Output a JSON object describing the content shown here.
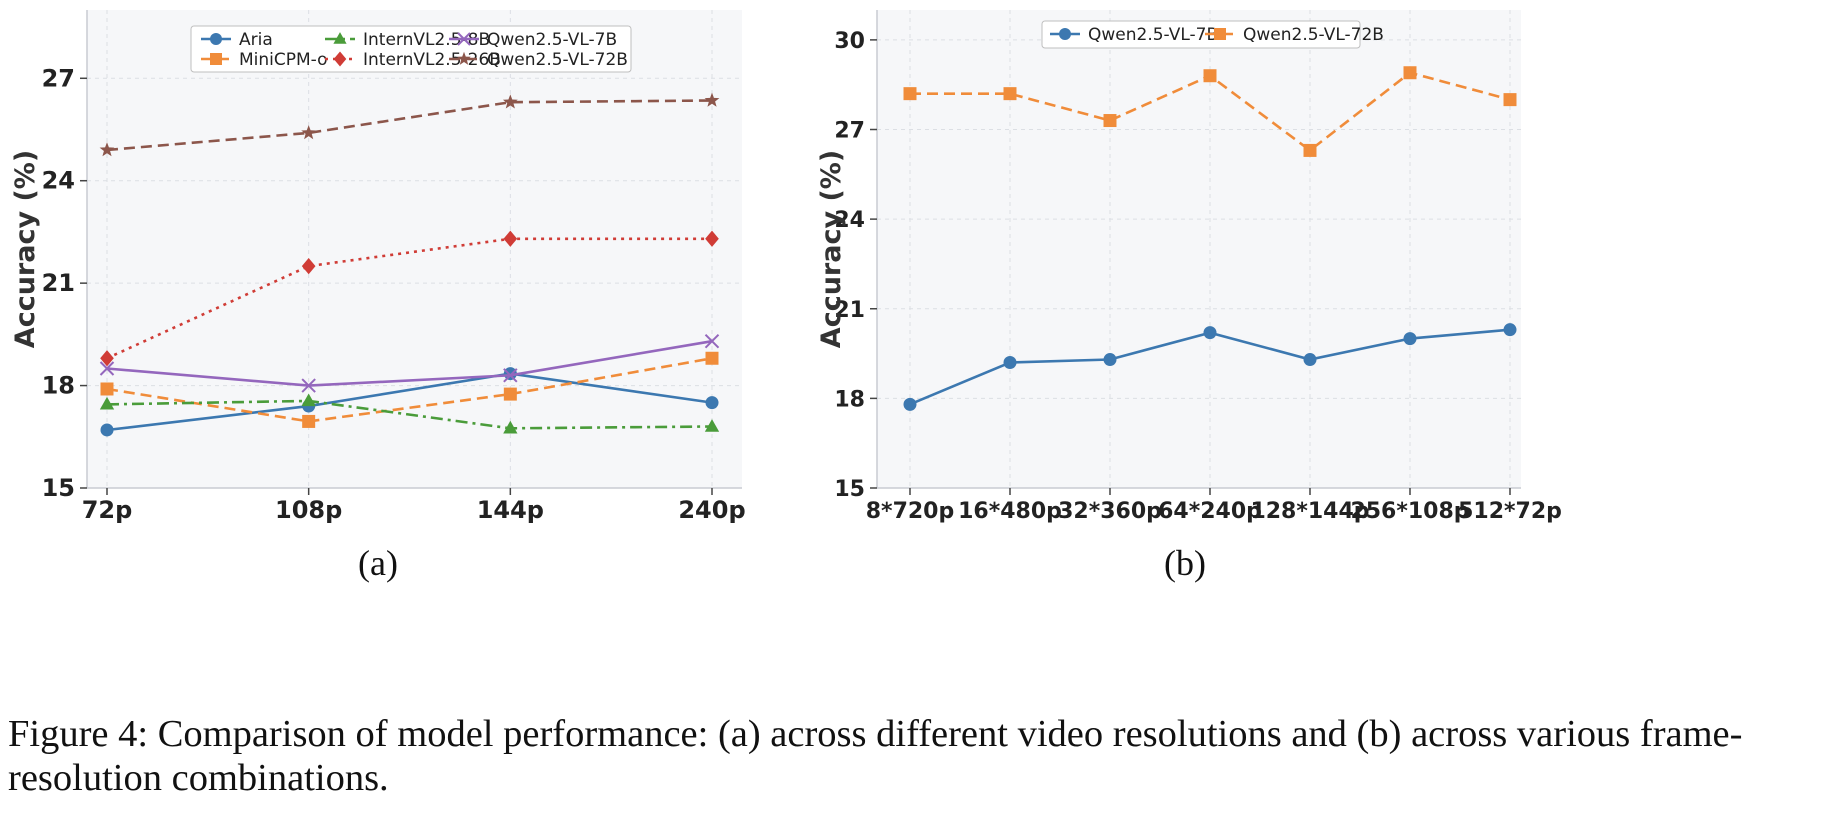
{
  "chart_data": [
    {
      "type": "line",
      "sublabel": "(a)",
      "ylabel": "Accuracy (%)",
      "xlabel": "",
      "categories": [
        "72p",
        "108p",
        "144p",
        "240p"
      ],
      "ylim": [
        15,
        29
      ],
      "yticks": [
        "15",
        "18",
        "21",
        "24",
        "27"
      ],
      "grid": true,
      "legend_position": "top-center",
      "series": [
        {
          "name": "Aria",
          "color": "#3c78b0",
          "marker": "circle",
          "dash": "solid",
          "values": [
            16.7,
            17.4,
            18.35,
            17.5
          ]
        },
        {
          "name": "MiniCPM-o",
          "color": "#f08c3a",
          "marker": "square",
          "dash": "dashed",
          "values": [
            17.9,
            16.95,
            17.75,
            18.8
          ]
        },
        {
          "name": "InternVL2.5-8B",
          "color": "#4a9c3a",
          "marker": "triangle",
          "dash": "dashdot",
          "values": [
            17.45,
            17.55,
            16.75,
            16.8
          ]
        },
        {
          "name": "InternVL2.5-26B",
          "color": "#d03c36",
          "marker": "diamond",
          "dash": "dotted",
          "values": [
            18.8,
            21.5,
            22.3,
            22.3
          ]
        },
        {
          "name": "Qwen2.5-VL-7B",
          "color": "#9467bd",
          "marker": "x",
          "dash": "solid",
          "values": [
            18.5,
            18.0,
            18.3,
            19.3
          ]
        },
        {
          "name": "Qwen2.5-VL-72B",
          "color": "#8c564b",
          "marker": "star",
          "dash": "dashed",
          "values": [
            24.9,
            25.4,
            26.3,
            26.35
          ]
        }
      ]
    },
    {
      "type": "line",
      "sublabel": "(b)",
      "ylabel": "Accuracy (%)",
      "xlabel": "",
      "categories": [
        "8*720p",
        "16*480p",
        "32*360p",
        "64*240p",
        "128*144p",
        "256*108p",
        "512*72p"
      ],
      "ylim": [
        15,
        31
      ],
      "yticks": [
        "15",
        "18",
        "21",
        "24",
        "27",
        "30"
      ],
      "grid": true,
      "legend_position": "top-center",
      "series": [
        {
          "name": "Qwen2.5-VL-7B",
          "color": "#3c78b0",
          "marker": "circle",
          "dash": "solid",
          "values": [
            17.8,
            19.2,
            19.3,
            20.2,
            19.3,
            20.0,
            20.3
          ]
        },
        {
          "name": "Qwen2.5-VL-72B",
          "color": "#f08c3a",
          "marker": "square",
          "dash": "dashed",
          "values": [
            28.2,
            28.2,
            27.3,
            28.8,
            26.3,
            28.9,
            28.0
          ]
        }
      ]
    }
  ],
  "caption": "Figure 4: Comparison of model performance: (a) across different video resolutions and (b) across various frame-resolution combinations."
}
